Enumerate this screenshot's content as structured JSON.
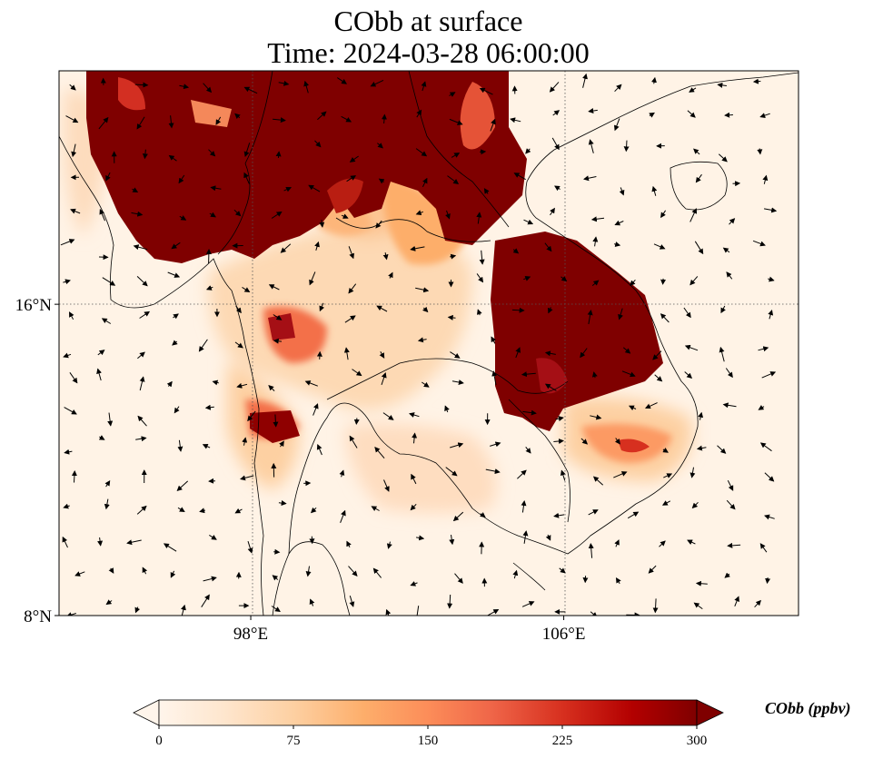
{
  "map": {
    "title_line1": "CObb at surface",
    "title_line2": "Time: 2024-03-28 06:00:00",
    "lon_ticks": [
      {
        "label": "98°E",
        "value": 98
      },
      {
        "label": "106°E",
        "value": 106
      }
    ],
    "lat_ticks": [
      {
        "label": "16°N",
        "value": 16
      },
      {
        "label": "8°N",
        "value": 8
      }
    ],
    "extent": {
      "lon_min": 93.1,
      "lon_max": 112.0,
      "lat_min": 8.0,
      "lat_max": 22.0
    },
    "wind_vectors": "shown",
    "gridlines": "dotted",
    "colormap": [
      "#fff5eb",
      "#fee6ce",
      "#fdd0a2",
      "#fdae6b",
      "#fd8d3c",
      "#f16913",
      "#d94801",
      "#a63603",
      "#7f0000"
    ]
  },
  "colorbar": {
    "label": "CObb (ppbv)",
    "min": 0,
    "max": 300,
    "ticks": [
      "0",
      "75",
      "150",
      "225",
      "300"
    ],
    "extend": "both"
  }
}
